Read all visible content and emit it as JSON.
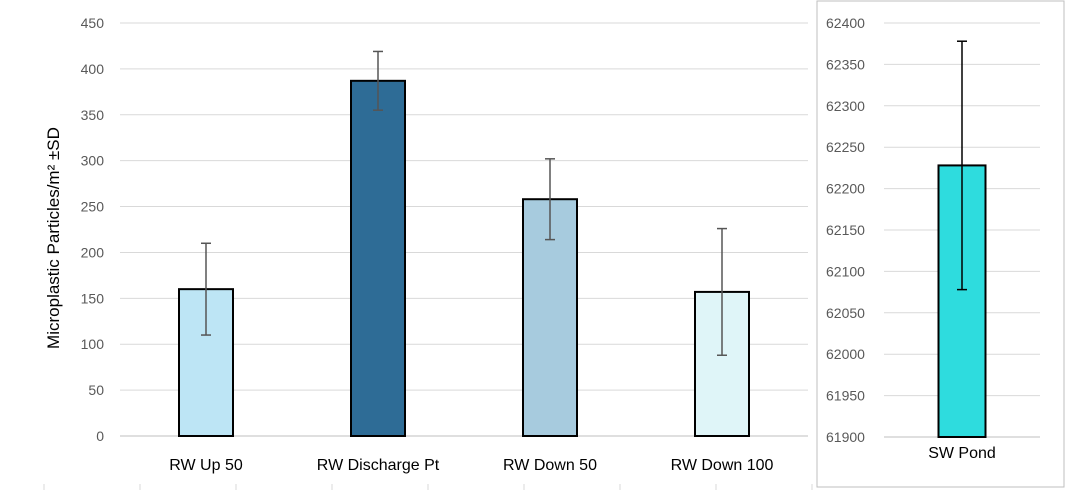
{
  "chart_data": [
    {
      "type": "bar",
      "ylabel": "Microplastic Particles/m² ±SD",
      "ylim": [
        0,
        450
      ],
      "yticks": [
        0,
        50,
        100,
        150,
        200,
        250,
        300,
        350,
        400,
        450
      ],
      "grid": true,
      "categories": [
        "RW Up 50",
        "RW Discharge Pt",
        "RW Down 50",
        "RW Down 100"
      ],
      "values": [
        160,
        387,
        258,
        157
      ],
      "errors": [
        50,
        32,
        44,
        69
      ],
      "colors": [
        "#BDE5F5",
        "#2E6C96",
        "#A7CBDE",
        "#DFF5F8"
      ]
    },
    {
      "type": "bar",
      "ylim": [
        61900,
        62400
      ],
      "yticks": [
        61900,
        61950,
        62000,
        62050,
        62100,
        62150,
        62200,
        62250,
        62300,
        62350,
        62400
      ],
      "grid": true,
      "categories": [
        "SW Pond"
      ],
      "values": [
        62228
      ],
      "errors": [
        150
      ],
      "colors": [
        "#2EDCDE"
      ]
    }
  ]
}
